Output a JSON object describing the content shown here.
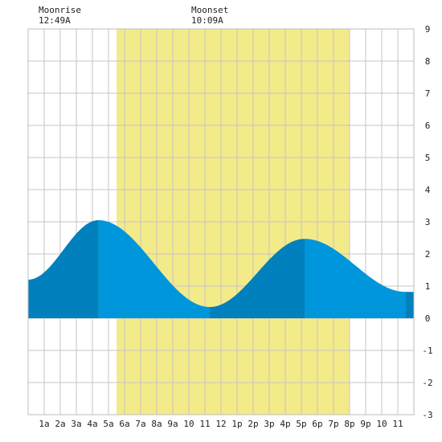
{
  "annotations": [
    {
      "title": "Moonrise",
      "time": "12:49A",
      "hour": 0.82
    },
    {
      "title": "Moonset",
      "time": "10:09A",
      "hour": 10.15
    }
  ],
  "chart_data": {
    "type": "area",
    "title": "",
    "xlabel": "",
    "ylabel": "",
    "xlim": [
      0,
      24
    ],
    "ylim": [
      -3,
      9
    ],
    "grid": true,
    "x_ticks": [
      {
        "hour": 1,
        "label": "1a"
      },
      {
        "hour": 2,
        "label": "2a"
      },
      {
        "hour": 3,
        "label": "3a"
      },
      {
        "hour": 4,
        "label": "4a"
      },
      {
        "hour": 5,
        "label": "5a"
      },
      {
        "hour": 6,
        "label": "6a"
      },
      {
        "hour": 7,
        "label": "7a"
      },
      {
        "hour": 8,
        "label": "8a"
      },
      {
        "hour": 9,
        "label": "9a"
      },
      {
        "hour": 10,
        "label": "10"
      },
      {
        "hour": 11,
        "label": "11"
      },
      {
        "hour": 12,
        "label": "12"
      },
      {
        "hour": 13,
        "label": "1p"
      },
      {
        "hour": 14,
        "label": "2p"
      },
      {
        "hour": 15,
        "label": "3p"
      },
      {
        "hour": 16,
        "label": "4p"
      },
      {
        "hour": 17,
        "label": "5p"
      },
      {
        "hour": 18,
        "label": "6p"
      },
      {
        "hour": 19,
        "label": "7p"
      },
      {
        "hour": 20,
        "label": "8p"
      },
      {
        "hour": 21,
        "label": "9p"
      },
      {
        "hour": 22,
        "label": "10"
      },
      {
        "hour": 23,
        "label": "11"
      }
    ],
    "y_ticks": [
      -3,
      -2,
      -1,
      0,
      1,
      2,
      3,
      4,
      5,
      6,
      7,
      8,
      9
    ],
    "daylight": {
      "start": 5.5,
      "end": 20.0
    },
    "tide_extrema": [
      {
        "hour": 0.0,
        "value": 1.2
      },
      {
        "hour": 4.38,
        "value": 3.05
      },
      {
        "hour": 11.3,
        "value": 0.35
      },
      {
        "hour": 17.2,
        "value": 2.47
      },
      {
        "hour": 23.5,
        "value": 0.82
      },
      {
        "hour": 24.0,
        "value": 0.82
      }
    ],
    "shade_bands": [
      {
        "start": 0.0,
        "end": 4.38,
        "tone": "dark"
      },
      {
        "start": 4.38,
        "end": 11.3,
        "tone": "light"
      },
      {
        "start": 11.3,
        "end": 17.2,
        "tone": "dark"
      },
      {
        "start": 17.2,
        "end": 23.5,
        "tone": "light"
      },
      {
        "start": 23.5,
        "end": 24.0,
        "tone": "dark"
      }
    ],
    "colors": {
      "daylight": "#f3ea8a",
      "tide_light": "#0096dc",
      "tide_dark": "#0080bc",
      "grid": "#c4c4c4",
      "frame": "#bdbdbd"
    }
  }
}
